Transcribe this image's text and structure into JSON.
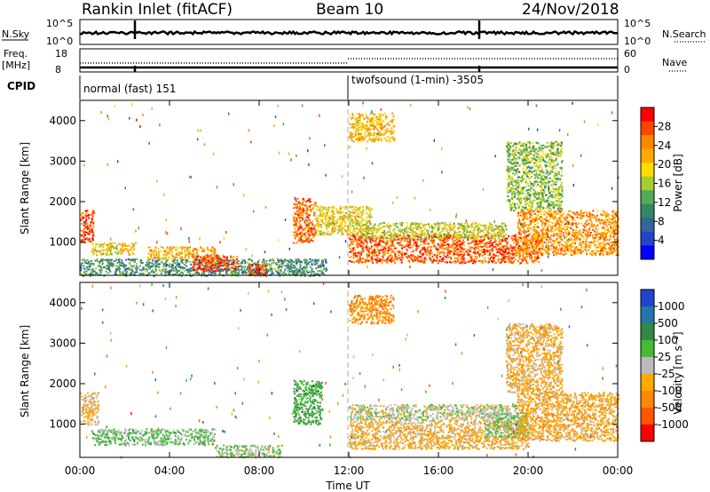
{
  "header": {
    "station": "Rankin Inlet (fitACF)",
    "beam": "Beam 10",
    "date": "24/Nov/2018"
  },
  "top_panels": {
    "nsky_label": "N.Sky",
    "nsky_ticks": [
      "10^5",
      "10^0"
    ],
    "nsearch_label": "N.Search",
    "nsearch_ticks": [
      "10^5",
      "10^0"
    ],
    "freq_label": "Freq.",
    "freq_unit": "[MHz]",
    "freq_ticks": [
      "18",
      "8"
    ],
    "nave_label": "Nave",
    "nave_ticks": [
      "60",
      "0"
    ],
    "cpid_label": "CPID",
    "cpid_segments": [
      {
        "label": "normal (fast) 151",
        "start_hour": 0,
        "end_hour": 12
      },
      {
        "label": "twofsound (1-min) -3505",
        "start_hour": 12,
        "end_hour": 24
      }
    ]
  },
  "x_axis": {
    "label": "Time UT",
    "ticks": [
      "00:00",
      "04:00",
      "08:00",
      "12:00",
      "16:00",
      "20:00",
      "00:00"
    ]
  },
  "panels": [
    {
      "id": "power",
      "ylabel": "Slant Range [km]",
      "cbar_label": "Power [dB]",
      "cbar_ticks": [
        "28",
        "24",
        "20",
        "16",
        "12",
        "8",
        "4"
      ],
      "cbar_colors": [
        "#ff0000",
        "#ff4400",
        "#ff8800",
        "#ffaa00",
        "#ffdd00",
        "#aacc33",
        "#55aa55",
        "#338866",
        "#336699",
        "#2244cc",
        "#0000ff"
      ]
    },
    {
      "id": "velocity",
      "ylabel": "Slant Range [km]",
      "cbar_label": "Velocity [m s⁻¹]",
      "cbar_ticks": [
        "1000",
        "500",
        "100",
        "25",
        "-25",
        "-100",
        "-500",
        "-1000"
      ],
      "cbar_colors": [
        "#2244cc",
        "#2277aa",
        "#338844",
        "#44bb33",
        "#bbbbbb",
        "#ffaa00",
        "#ff8800",
        "#ff5500",
        "#ff0000"
      ]
    }
  ],
  "chart_data": [
    {
      "type": "heatmap",
      "name": "Power",
      "x_unit": "hours UT",
      "xlim": [
        0,
        24
      ],
      "ylim": [
        180,
        4500
      ],
      "yticks": [
        1000,
        2000,
        3000,
        4000
      ],
      "cbar_range": [
        0,
        30
      ],
      "scatter_bands": [
        {
          "t0": 0.0,
          "t1": 0.6,
          "r0": 1000,
          "r1": 1800,
          "value": 26
        },
        {
          "t0": 0.0,
          "t1": 11.0,
          "r0": 180,
          "r1": 600,
          "value": 10
        },
        {
          "t0": 0.5,
          "t1": 2.5,
          "r0": 700,
          "r1": 1000,
          "value": 18
        },
        {
          "t0": 3.0,
          "t1": 6.0,
          "r0": 600,
          "r1": 900,
          "value": 20
        },
        {
          "t0": 5.0,
          "t1": 7.0,
          "r0": 300,
          "r1": 700,
          "value": 26
        },
        {
          "t0": 7.5,
          "t1": 8.3,
          "r0": 200,
          "r1": 500,
          "value": 26
        },
        {
          "t0": 9.5,
          "t1": 10.5,
          "r0": 1000,
          "r1": 2100,
          "value": 24
        },
        {
          "t0": 10.5,
          "t1": 13.0,
          "r0": 1200,
          "r1": 1900,
          "value": 18
        },
        {
          "t0": 12.0,
          "t1": 20.5,
          "r0": 500,
          "r1": 1200,
          "value": 25
        },
        {
          "t0": 12.5,
          "t1": 19.0,
          "r0": 1100,
          "r1": 1500,
          "value": 16
        },
        {
          "t0": 19.5,
          "t1": 24.0,
          "r0": 700,
          "r1": 1800,
          "value": 22
        },
        {
          "t0": 12.0,
          "t1": 14.0,
          "r0": 3500,
          "r1": 4200,
          "value": 20
        },
        {
          "t0": 19.0,
          "t1": 21.5,
          "r0": 1800,
          "r1": 3500,
          "value": 14
        }
      ]
    },
    {
      "type": "heatmap",
      "name": "Velocity",
      "x_unit": "hours UT",
      "xlim": [
        0,
        24
      ],
      "ylim": [
        180,
        4500
      ],
      "yticks": [
        1000,
        2000,
        3000,
        4000
      ],
      "cbar_range": [
        -1000,
        1000
      ],
      "scatter_bands": [
        {
          "t0": 0.0,
          "t1": 0.8,
          "r0": 1000,
          "r1": 1800,
          "value": -150
        },
        {
          "t0": 0.5,
          "t1": 6.0,
          "r0": 500,
          "r1": 900,
          "value": 150
        },
        {
          "t0": 6.0,
          "t1": 9.0,
          "r0": 200,
          "r1": 500,
          "value": 80
        },
        {
          "t0": 9.5,
          "t1": 10.8,
          "r0": 1000,
          "r1": 2100,
          "value": 300
        },
        {
          "t0": 12.0,
          "t1": 19.5,
          "r0": 1100,
          "r1": 1500,
          "value": 0
        },
        {
          "t0": 12.0,
          "t1": 20.0,
          "r0": 400,
          "r1": 1100,
          "value": -200
        },
        {
          "t0": 18.0,
          "t1": 20.0,
          "r0": 700,
          "r1": 1300,
          "value": 100
        },
        {
          "t0": 19.5,
          "t1": 24.0,
          "r0": 600,
          "r1": 1800,
          "value": -250
        },
        {
          "t0": 12.0,
          "t1": 14.0,
          "r0": 3500,
          "r1": 4200,
          "value": -400
        },
        {
          "t0": 19.0,
          "t1": 21.5,
          "r0": 1800,
          "r1": 3500,
          "value": -200
        }
      ]
    }
  ]
}
